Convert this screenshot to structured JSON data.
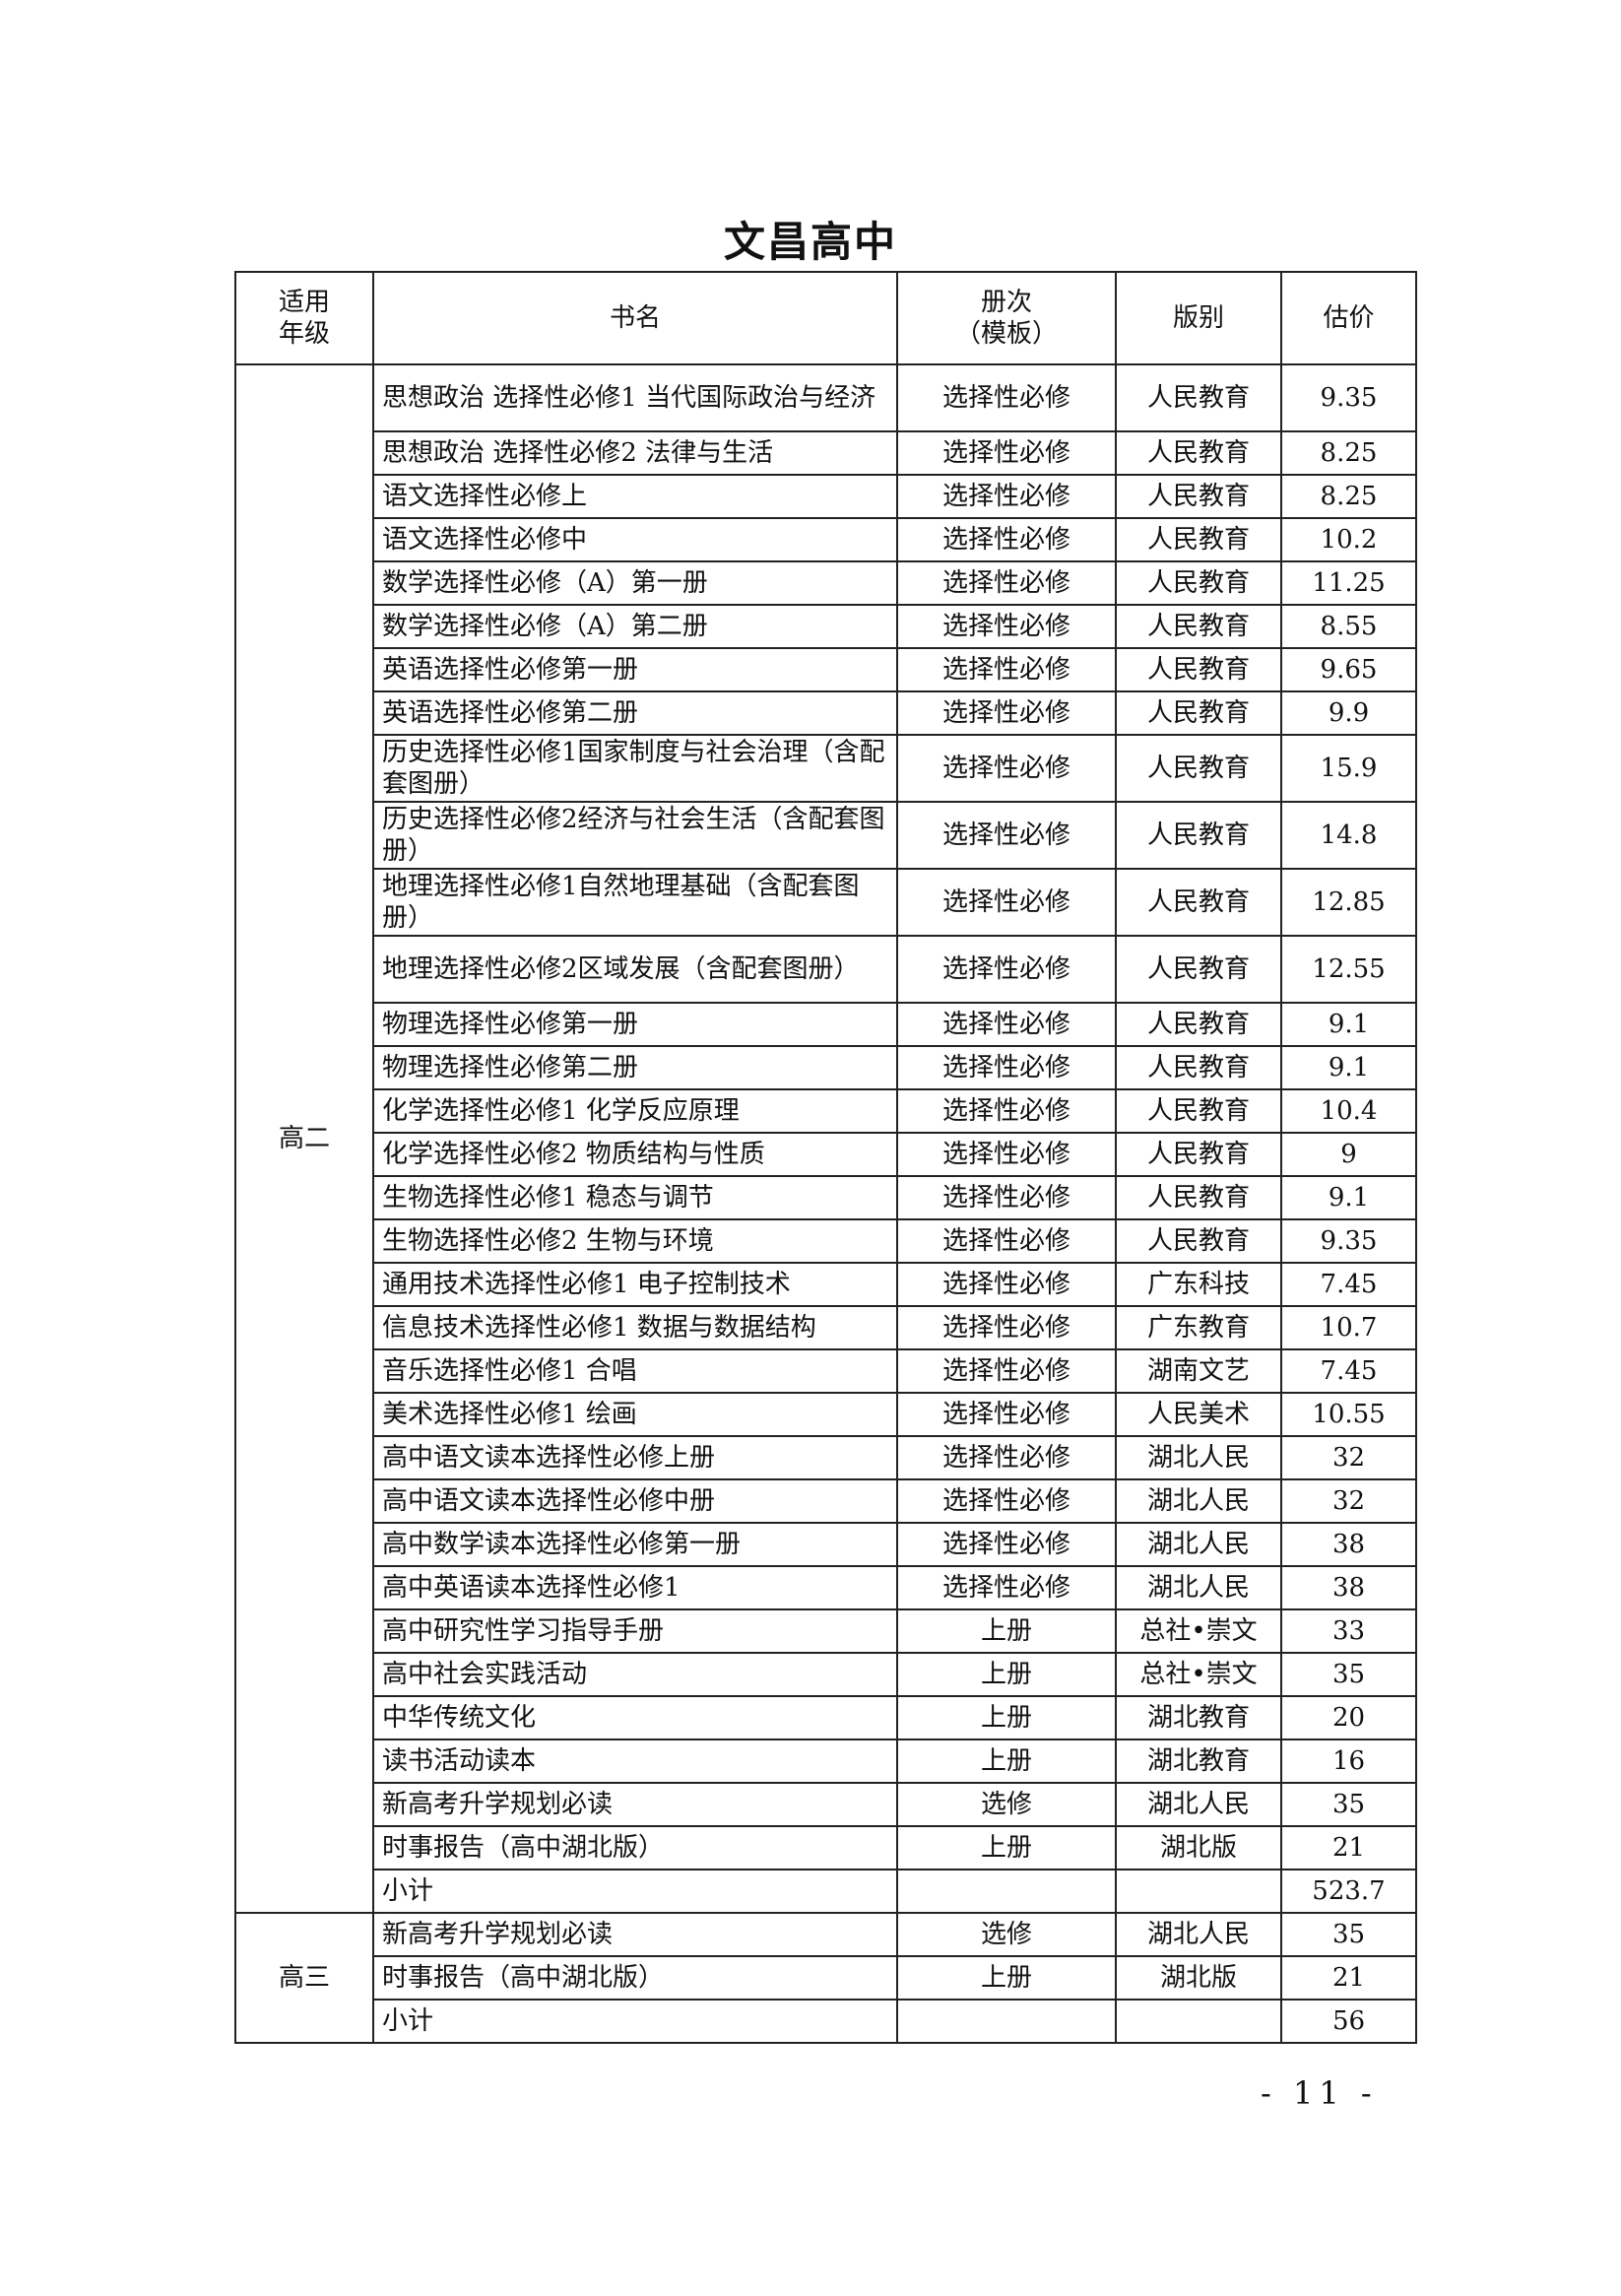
{
  "title": "文昌高中",
  "headers": [
    "适用\n年级",
    "书名",
    "册次\n（模板）",
    "版别",
    "估价"
  ],
  "groups": [
    {
      "grade": "高二",
      "rows": [
        [
          "思想政治 选择性必修1 当代国际政治与经济",
          "选择性必修",
          "人民教育",
          "9.35"
        ],
        [
          "思想政治 选择性必修2 法律与生活",
          "选择性必修",
          "人民教育",
          "8.25"
        ],
        [
          "语文选择性必修上",
          "选择性必修",
          "人民教育",
          "8.25"
        ],
        [
          "语文选择性必修中",
          "选择性必修",
          "人民教育",
          "10.2"
        ],
        [
          "数学选择性必修（A）第一册",
          "选择性必修",
          "人民教育",
          "11.25"
        ],
        [
          "数学选择性必修（A）第二册",
          "选择性必修",
          "人民教育",
          "8.55"
        ],
        [
          "英语选择性必修第一册",
          "选择性必修",
          "人民教育",
          "9.65"
        ],
        [
          "英语选择性必修第二册",
          "选择性必修",
          "人民教育",
          "9.9"
        ],
        [
          "历史选择性必修1国家制度与社会治理（含配套图册）",
          "选择性必修",
          "人民教育",
          "15.9"
        ],
        [
          "历史选择性必修2经济与社会生活（含配套图册）",
          "选择性必修",
          "人民教育",
          "14.8"
        ],
        [
          "地理选择性必修1自然地理基础（含配套图册）",
          "选择性必修",
          "人民教育",
          "12.85"
        ],
        [
          "地理选择性必修2区域发展（含配套图册）",
          "选择性必修",
          "人民教育",
          "12.55"
        ],
        [
          "物理选择性必修第一册",
          "选择性必修",
          "人民教育",
          "9.1"
        ],
        [
          "物理选择性必修第二册",
          "选择性必修",
          "人民教育",
          "9.1"
        ],
        [
          "化学选择性必修1 化学反应原理",
          "选择性必修",
          "人民教育",
          "10.4"
        ],
        [
          "化学选择性必修2 物质结构与性质",
          "选择性必修",
          "人民教育",
          "9"
        ],
        [
          "生物选择性必修1 稳态与调节",
          "选择性必修",
          "人民教育",
          "9.1"
        ],
        [
          "生物选择性必修2 生物与环境",
          "选择性必修",
          "人民教育",
          "9.35"
        ],
        [
          "通用技术选择性必修1 电子控制技术",
          "选择性必修",
          "广东科技",
          "7.45"
        ],
        [
          "信息技术选择性必修1 数据与数据结构",
          "选择性必修",
          "广东教育",
          "10.7"
        ],
        [
          "音乐选择性必修1 合唱",
          "选择性必修",
          "湖南文艺",
          "7.45"
        ],
        [
          "美术选择性必修1 绘画",
          "选择性必修",
          "人民美术",
          "10.55"
        ],
        [
          "高中语文读本选择性必修上册",
          "选择性必修",
          "湖北人民",
          "32"
        ],
        [
          "高中语文读本选择性必修中册",
          "选择性必修",
          "湖北人民",
          "32"
        ],
        [
          "高中数学读本选择性必修第一册",
          "选择性必修",
          "湖北人民",
          "38"
        ],
        [
          "高中英语读本选择性必修1",
          "选择性必修",
          "湖北人民",
          "38"
        ],
        [
          "高中研究性学习指导手册",
          "上册",
          "总社•崇文",
          "33"
        ],
        [
          "高中社会实践活动",
          "上册",
          "总社•崇文",
          "35"
        ],
        [
          "中华传统文化",
          "上册",
          "湖北教育",
          "20"
        ],
        [
          "读书活动读本",
          "上册",
          "湖北教育",
          "16"
        ],
        [
          "新高考升学规划必读",
          "选修",
          "湖北人民",
          "35"
        ],
        [
          "时事报告（高中湖北版）",
          "上册",
          "湖北版",
          "21"
        ],
        [
          "小计",
          "",
          "",
          "523.7"
        ]
      ]
    },
    {
      "grade": "高三",
      "rows": [
        [
          "新高考升学规划必读",
          "选修",
          "湖北人民",
          "35"
        ],
        [
          "时事报告（高中湖北版）",
          "上册",
          "湖北版",
          "21"
        ],
        [
          "小计",
          "",
          "",
          "56"
        ]
      ]
    }
  ],
  "page_number": "- 11 -"
}
